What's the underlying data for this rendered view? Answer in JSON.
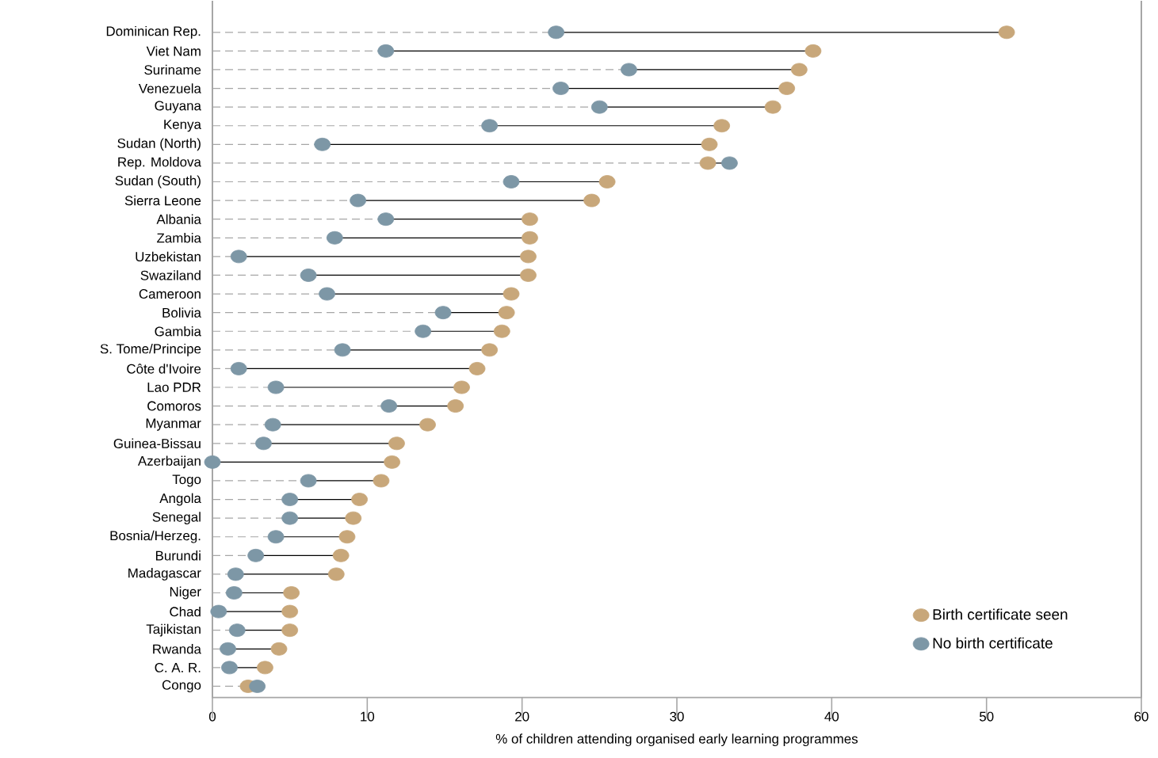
{
  "chart_data": {
    "type": "scatter",
    "orientation": "horizontal",
    "xlabel": "% of children attending organised early learning programmes",
    "categories": [
      "Dominican Rep.",
      "Viet Nam",
      "Suriname",
      "Venezuela",
      "Guyana",
      "Kenya",
      "Sudan (North)",
      "Rep. Moldova",
      "Sudan (South)",
      "Sierra Leone",
      "Albania",
      "Zambia",
      "Uzbekistan",
      "Swaziland",
      "Cameroon",
      "Bolivia",
      "Gambia",
      "S. Tome/Principe",
      "Côte d'Ivoire",
      "Lao PDR",
      "Comoros",
      "Myanmar",
      "Guinea-Bissau",
      "Azerbaijan",
      "Togo",
      "Angola",
      "Senegal",
      "Bosnia/Herzeg.",
      "Burundi",
      "Madagascar",
      "Niger",
      "Chad",
      "Tajikistan",
      "Rwanda",
      "C. A. R.",
      "Congo"
    ],
    "series": [
      {
        "name": "Birth certificate seen",
        "color": "#c8a77a",
        "values": [
          51.3,
          38.8,
          37.9,
          37.1,
          36.2,
          32.9,
          32.1,
          32.0,
          25.5,
          24.5,
          20.5,
          20.5,
          20.4,
          20.4,
          19.3,
          19.0,
          18.7,
          17.9,
          17.1,
          16.1,
          15.7,
          13.9,
          11.9,
          11.6,
          10.9,
          9.5,
          9.1,
          8.7,
          8.3,
          8.0,
          5.1,
          5.0,
          5.0,
          4.3,
          3.4,
          2.3
        ]
      },
      {
        "name": "No birth certificate",
        "color": "#7d97a6",
        "values": [
          22.2,
          11.2,
          26.9,
          22.5,
          25.0,
          17.9,
          7.1,
          33.4,
          19.3,
          9.4,
          11.2,
          7.9,
          1.7,
          6.2,
          7.4,
          14.9,
          13.6,
          8.4,
          1.7,
          4.1,
          11.4,
          3.9,
          3.3,
          0.0,
          6.2,
          5.0,
          5.0,
          4.1,
          2.8,
          1.5,
          1.4,
          0.4,
          1.6,
          1.0,
          1.1,
          2.9
        ]
      }
    ],
    "xlim": [
      0,
      60
    ],
    "xticks": [
      0,
      10,
      20,
      30,
      40,
      50,
      60
    ],
    "marker": "circle",
    "legend": "bottom right"
  }
}
